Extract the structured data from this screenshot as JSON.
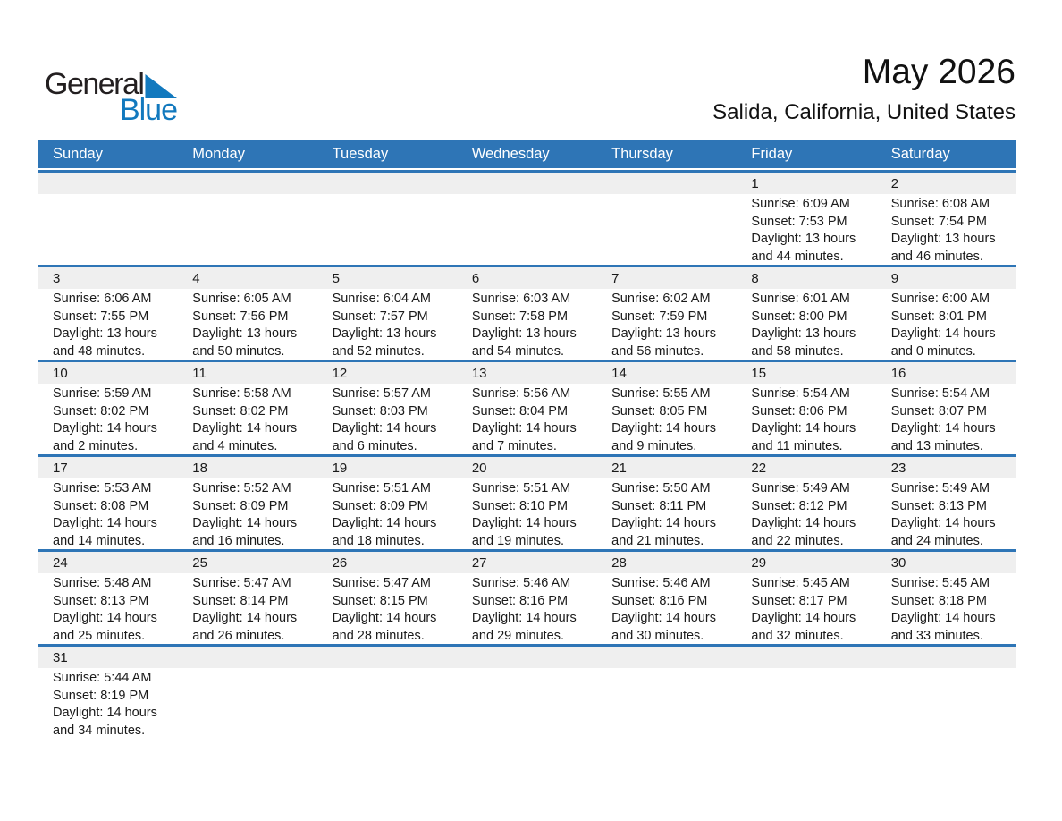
{
  "logo": {
    "text_general": "General",
    "text_blue": "Blue"
  },
  "title": "May 2026",
  "subtitle": "Salida, California, United States",
  "weekday_headers": [
    "Sunday",
    "Monday",
    "Tuesday",
    "Wednesday",
    "Thursday",
    "Friday",
    "Saturday"
  ],
  "colors": {
    "header_blue": "#2E75B6",
    "row_border_blue": "#2E75B6",
    "number_band_gray": "#EFEFEF",
    "logo_blue": "#1279BE",
    "weekday_text": "#FFFFFF"
  },
  "weeks": [
    {
      "days": [
        null,
        null,
        null,
        null,
        null,
        {
          "number": "1",
          "sunrise": "Sunrise: 6:09 AM",
          "sunset": "Sunset: 7:53 PM",
          "daylight": "Daylight: 13 hours and 44 minutes."
        },
        {
          "number": "2",
          "sunrise": "Sunrise: 6:08 AM",
          "sunset": "Sunset: 7:54 PM",
          "daylight": "Daylight: 13 hours and 46 minutes."
        }
      ]
    },
    {
      "days": [
        {
          "number": "3",
          "sunrise": "Sunrise: 6:06 AM",
          "sunset": "Sunset: 7:55 PM",
          "daylight": "Daylight: 13 hours and 48 minutes."
        },
        {
          "number": "4",
          "sunrise": "Sunrise: 6:05 AM",
          "sunset": "Sunset: 7:56 PM",
          "daylight": "Daylight: 13 hours and 50 minutes."
        },
        {
          "number": "5",
          "sunrise": "Sunrise: 6:04 AM",
          "sunset": "Sunset: 7:57 PM",
          "daylight": "Daylight: 13 hours and 52 minutes."
        },
        {
          "number": "6",
          "sunrise": "Sunrise: 6:03 AM",
          "sunset": "Sunset: 7:58 PM",
          "daylight": "Daylight: 13 hours and 54 minutes."
        },
        {
          "number": "7",
          "sunrise": "Sunrise: 6:02 AM",
          "sunset": "Sunset: 7:59 PM",
          "daylight": "Daylight: 13 hours and 56 minutes."
        },
        {
          "number": "8",
          "sunrise": "Sunrise: 6:01 AM",
          "sunset": "Sunset: 8:00 PM",
          "daylight": "Daylight: 13 hours and 58 minutes."
        },
        {
          "number": "9",
          "sunrise": "Sunrise: 6:00 AM",
          "sunset": "Sunset: 8:01 PM",
          "daylight": "Daylight: 14 hours and 0 minutes."
        }
      ]
    },
    {
      "days": [
        {
          "number": "10",
          "sunrise": "Sunrise: 5:59 AM",
          "sunset": "Sunset: 8:02 PM",
          "daylight": "Daylight: 14 hours and 2 minutes."
        },
        {
          "number": "11",
          "sunrise": "Sunrise: 5:58 AM",
          "sunset": "Sunset: 8:02 PM",
          "daylight": "Daylight: 14 hours and 4 minutes."
        },
        {
          "number": "12",
          "sunrise": "Sunrise: 5:57 AM",
          "sunset": "Sunset: 8:03 PM",
          "daylight": "Daylight: 14 hours and 6 minutes."
        },
        {
          "number": "13",
          "sunrise": "Sunrise: 5:56 AM",
          "sunset": "Sunset: 8:04 PM",
          "daylight": "Daylight: 14 hours and 7 minutes."
        },
        {
          "number": "14",
          "sunrise": "Sunrise: 5:55 AM",
          "sunset": "Sunset: 8:05 PM",
          "daylight": "Daylight: 14 hours and 9 minutes."
        },
        {
          "number": "15",
          "sunrise": "Sunrise: 5:54 AM",
          "sunset": "Sunset: 8:06 PM",
          "daylight": "Daylight: 14 hours and 11 minutes."
        },
        {
          "number": "16",
          "sunrise": "Sunrise: 5:54 AM",
          "sunset": "Sunset: 8:07 PM",
          "daylight": "Daylight: 14 hours and 13 minutes."
        }
      ]
    },
    {
      "days": [
        {
          "number": "17",
          "sunrise": "Sunrise: 5:53 AM",
          "sunset": "Sunset: 8:08 PM",
          "daylight": "Daylight: 14 hours and 14 minutes."
        },
        {
          "number": "18",
          "sunrise": "Sunrise: 5:52 AM",
          "sunset": "Sunset: 8:09 PM",
          "daylight": "Daylight: 14 hours and 16 minutes."
        },
        {
          "number": "19",
          "sunrise": "Sunrise: 5:51 AM",
          "sunset": "Sunset: 8:09 PM",
          "daylight": "Daylight: 14 hours and 18 minutes."
        },
        {
          "number": "20",
          "sunrise": "Sunrise: 5:51 AM",
          "sunset": "Sunset: 8:10 PM",
          "daylight": "Daylight: 14 hours and 19 minutes."
        },
        {
          "number": "21",
          "sunrise": "Sunrise: 5:50 AM",
          "sunset": "Sunset: 8:11 PM",
          "daylight": "Daylight: 14 hours and 21 minutes."
        },
        {
          "number": "22",
          "sunrise": "Sunrise: 5:49 AM",
          "sunset": "Sunset: 8:12 PM",
          "daylight": "Daylight: 14 hours and 22 minutes."
        },
        {
          "number": "23",
          "sunrise": "Sunrise: 5:49 AM",
          "sunset": "Sunset: 8:13 PM",
          "daylight": "Daylight: 14 hours and 24 minutes."
        }
      ]
    },
    {
      "days": [
        {
          "number": "24",
          "sunrise": "Sunrise: 5:48 AM",
          "sunset": "Sunset: 8:13 PM",
          "daylight": "Daylight: 14 hours and 25 minutes."
        },
        {
          "number": "25",
          "sunrise": "Sunrise: 5:47 AM",
          "sunset": "Sunset: 8:14 PM",
          "daylight": "Daylight: 14 hours and 26 minutes."
        },
        {
          "number": "26",
          "sunrise": "Sunrise: 5:47 AM",
          "sunset": "Sunset: 8:15 PM",
          "daylight": "Daylight: 14 hours and 28 minutes."
        },
        {
          "number": "27",
          "sunrise": "Sunrise: 5:46 AM",
          "sunset": "Sunset: 8:16 PM",
          "daylight": "Daylight: 14 hours and 29 minutes."
        },
        {
          "number": "28",
          "sunrise": "Sunrise: 5:46 AM",
          "sunset": "Sunset: 8:16 PM",
          "daylight": "Daylight: 14 hours and 30 minutes."
        },
        {
          "number": "29",
          "sunrise": "Sunrise: 5:45 AM",
          "sunset": "Sunset: 8:17 PM",
          "daylight": "Daylight: 14 hours and 32 minutes."
        },
        {
          "number": "30",
          "sunrise": "Sunrise: 5:45 AM",
          "sunset": "Sunset: 8:18 PM",
          "daylight": "Daylight: 14 hours and 33 minutes."
        }
      ]
    },
    {
      "days": [
        {
          "number": "31",
          "sunrise": "Sunrise: 5:44 AM",
          "sunset": "Sunset: 8:19 PM",
          "daylight": "Daylight: 14 hours and 34 minutes."
        },
        null,
        null,
        null,
        null,
        null,
        null
      ]
    }
  ]
}
